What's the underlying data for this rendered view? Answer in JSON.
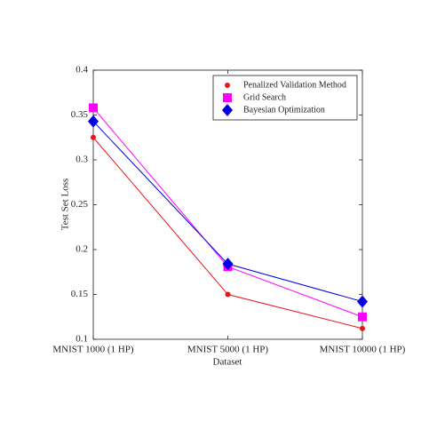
{
  "chart_data": {
    "type": "line",
    "xlabel": "Dataset",
    "ylabel": "Test Set Loss",
    "categories": [
      "MNIST 1000 (1 HP)",
      "MNIST 5000 (1 HP)",
      "MNIST 10000 (1 HP)"
    ],
    "series": [
      {
        "name": "Penalized Validation Method",
        "color": "#e8141a",
        "marker": "circle",
        "values": [
          0.325,
          0.15,
          0.112
        ]
      },
      {
        "name": "Grid Search",
        "color": "#f0f",
        "marker": "square",
        "values": [
          0.358,
          0.181,
          0.125
        ]
      },
      {
        "name": "Bayesian Optimization",
        "color": "#0000e6",
        "marker": "diamond",
        "values": [
          0.343,
          0.184,
          0.142
        ]
      }
    ],
    "ylim": [
      0.1,
      0.4
    ],
    "yticks": [
      0.1,
      0.15,
      0.2,
      0.25,
      0.3,
      0.35,
      0.4
    ],
    "legend": "upper right"
  }
}
